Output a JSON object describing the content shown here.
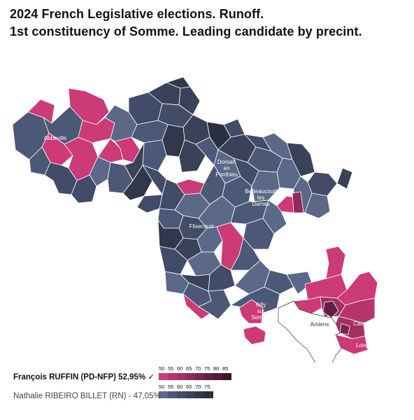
{
  "title": {
    "line1": "2024 French Legislative elections. Runoff.",
    "line2": "1st constituency of Somme. Leading candidate by precint."
  },
  "places": [
    {
      "name": "Abbeville"
    },
    {
      "name": "Domart\nen\nPonthieu"
    },
    {
      "name": "Berteaucourt\nles\nDames"
    },
    {
      "name": "Flixecourt"
    },
    {
      "name": "Ailly\nsur\nSomme"
    },
    {
      "name": "Amiens"
    },
    {
      "name": "Camon"
    },
    {
      "name": "Longueau"
    }
  ],
  "legend": {
    "winner": {
      "label": "François RUFFIN (PD-NFP) 52,95% ✓",
      "ticks": [
        "50",
        "55",
        "60",
        "65",
        "70",
        "75",
        "80",
        "85"
      ],
      "colors": [
        "#cc3a78",
        "#b8346c",
        "#a33063",
        "#8e2b58",
        "#7a254e",
        "#651f43",
        "#521a38",
        "#3d142c"
      ]
    },
    "loser": {
      "label": "Nathalie RIBEIRO BILLET (RN) - 47,05%",
      "ticks": [
        "50",
        "55",
        "60",
        "65",
        "70",
        "75"
      ],
      "colors": [
        "#5b6888",
        "#4c5877",
        "#424c68",
        "#3a4259",
        "#32384b",
        "#2a2f3d"
      ]
    }
  },
  "colors": {
    "ruffin": "#cc3a78",
    "ruffin_dark": "#8e2b58",
    "rn": "#4c5877",
    "rn_dark": "#2e3344",
    "outside": "#ffffff"
  }
}
